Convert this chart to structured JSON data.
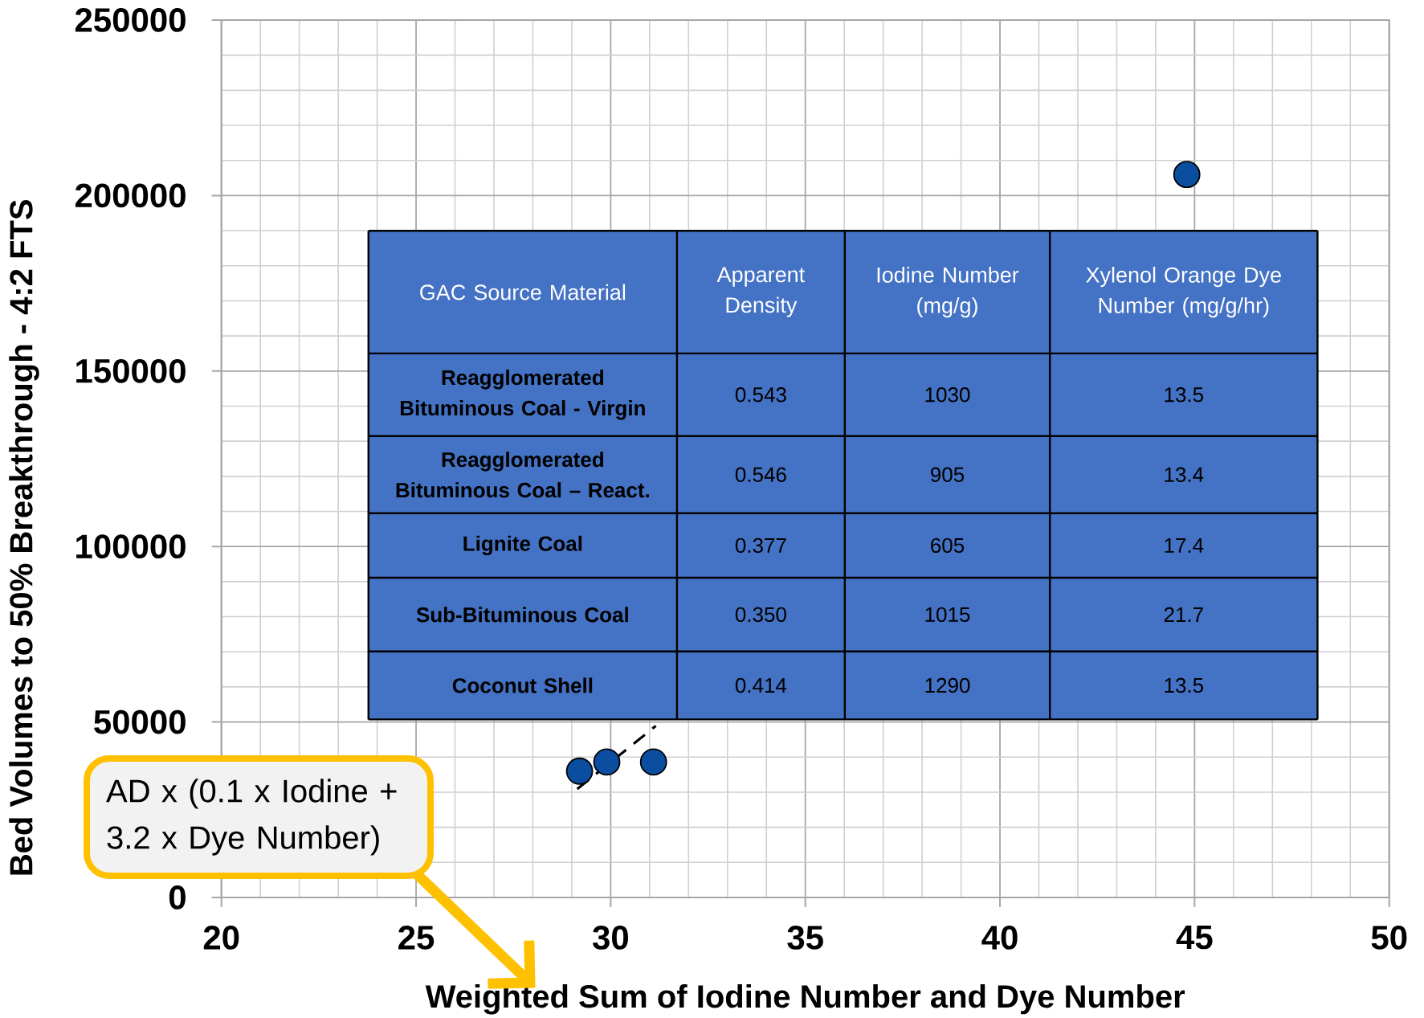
{
  "chart_data": {
    "type": "scatter",
    "xlabel": "Weighted Sum of Iodine Number and Dye Number",
    "ylabel": "Bed Volumes to 50% Breakthrough - 4:2 FTS",
    "xlim": [
      20,
      50
    ],
    "xticks": [
      20,
      25,
      30,
      35,
      40,
      45,
      50
    ],
    "ylim": [
      0,
      250000
    ],
    "yticks": [
      0,
      50000,
      100000,
      150000,
      200000,
      250000
    ],
    "grid": true,
    "marker": "circle",
    "series": [
      {
        "x": [
          29.2,
          29.9,
          31.1,
          44.8
        ],
        "values": [
          36000,
          38600,
          38600,
          206000
        ],
        "color": "#0b4ea0"
      },
      {
        "type": "line",
        "x": [
          29.14,
          31.16
        ],
        "values": [
          30900,
          48900
        ],
        "color": "#000000",
        "line_style": "dashed",
        "marker": "none"
      }
    ],
    "annotations": [
      "AD x (0.1 x Iodine + 3.2 x Dye Number)",
      "GAC Source Material",
      "Apparent Density",
      "Iodine Number (mg/g)",
      "Xylenol Orange Dye Number (mg/g/hr)",
      "Reagglomerated Bituminous Coal - Virgin",
      "0.543",
      "1030",
      "13.5",
      "Reagglomerated Bituminous Coal – React.",
      "0.546",
      "905",
      "13.4",
      "Lignite Coal",
      "0.377",
      "605",
      "17.4",
      "Sub-Bituminous Coal",
      "0.350",
      "1015",
      "21.7",
      "Coconut Shell",
      "0.414",
      "1290",
      "13.5"
    ]
  }
}
